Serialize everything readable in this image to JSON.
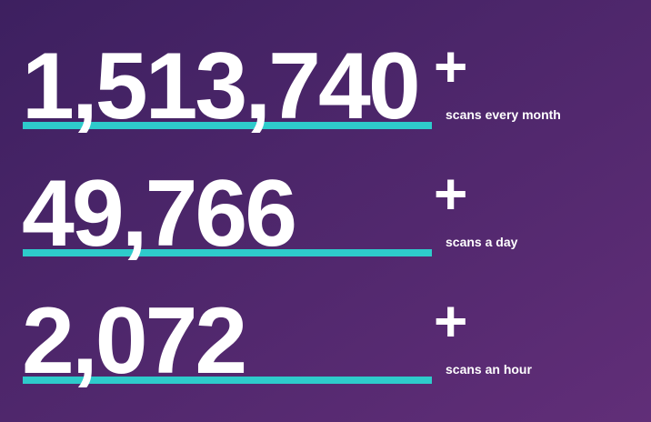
{
  "stats": [
    {
      "value": "1,513,740",
      "plus": "+",
      "label": "scans every month"
    },
    {
      "value": "49,766",
      "plus": "+",
      "label": "scans a day"
    },
    {
      "value": "2,072",
      "plus": "+",
      "label": "scans an hour"
    }
  ]
}
